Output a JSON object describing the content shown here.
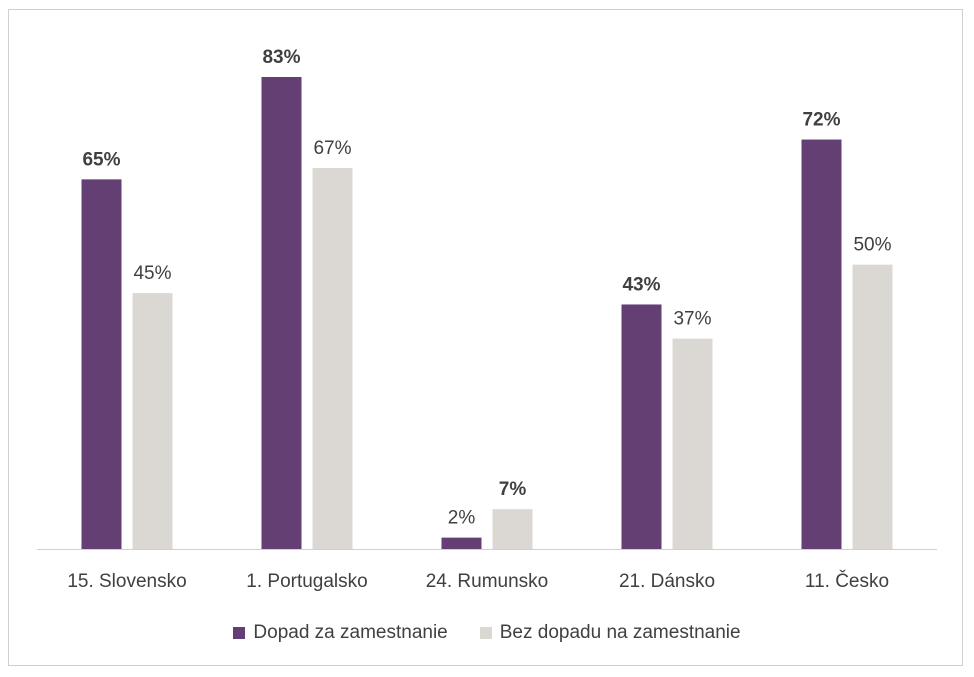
{
  "chart_data": {
    "type": "bar",
    "categories": [
      "15. Slovensko",
      "1. Portugalsko",
      "24. Rumunsko",
      "21. Dánsko",
      "11. Česko"
    ],
    "series": [
      {
        "name": "Dopad za zamestnanie",
        "color": "#633f73",
        "values": [
          65,
          83,
          2,
          43,
          72
        ],
        "labels": [
          "65%",
          "83%",
          "2%",
          "43%",
          "72%"
        ],
        "label_bold": [
          true,
          true,
          false,
          true,
          true
        ]
      },
      {
        "name": "Bez dopadu na zamestnanie",
        "color": "#dbd8d4",
        "values": [
          45,
          67,
          7,
          37,
          50
        ],
        "labels": [
          "45%",
          "67%",
          "7%",
          "37%",
          "50%"
        ],
        "label_bold": [
          false,
          false,
          true,
          false,
          false
        ]
      }
    ],
    "ylim": [
      0,
      83
    ],
    "grid": false,
    "legend_position": "bottom"
  }
}
